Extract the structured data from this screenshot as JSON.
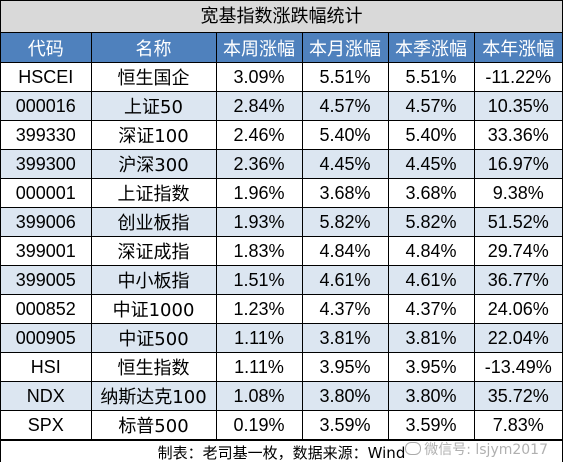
{
  "title": "宽基指数涨跌幅统计",
  "columns": [
    "代码",
    "名称",
    "本周涨幅",
    "本月涨幅",
    "本季涨幅",
    "本年涨幅"
  ],
  "colors": {
    "header_bg": "#4f81bd",
    "band_bg": "#dce6f1",
    "title_bg": "#d9d9d9",
    "up": "#e0191a",
    "down": "#139a3a"
  },
  "rows": [
    {
      "code": "HSCEI",
      "name": "恒生国企",
      "week": "3.09%",
      "month": "5.51%",
      "quarter": "5.51%",
      "year": "-11.22%"
    },
    {
      "code": "000016",
      "name": "上证50",
      "week": "2.84%",
      "month": "4.57%",
      "quarter": "4.57%",
      "year": "10.35%"
    },
    {
      "code": "399330",
      "name": "深证100",
      "week": "2.46%",
      "month": "5.40%",
      "quarter": "5.40%",
      "year": "33.36%"
    },
    {
      "code": "399300",
      "name": "沪深300",
      "week": "2.36%",
      "month": "4.45%",
      "quarter": "4.45%",
      "year": "16.97%"
    },
    {
      "code": "000001",
      "name": "上证指数",
      "week": "1.96%",
      "month": "3.68%",
      "quarter": "3.68%",
      "year": "9.38%"
    },
    {
      "code": "399006",
      "name": "创业板指",
      "week": "1.93%",
      "month": "5.82%",
      "quarter": "5.82%",
      "year": "51.52%"
    },
    {
      "code": "399001",
      "name": "深证成指",
      "week": "1.83%",
      "month": "4.84%",
      "quarter": "4.84%",
      "year": "29.74%"
    },
    {
      "code": "399005",
      "name": "中小板指",
      "week": "1.51%",
      "month": "4.61%",
      "quarter": "4.61%",
      "year": "36.77%"
    },
    {
      "code": "000852",
      "name": "中证1000",
      "week": "1.23%",
      "month": "4.37%",
      "quarter": "4.37%",
      "year": "24.06%"
    },
    {
      "code": "000905",
      "name": "中证500",
      "week": "1.11%",
      "month": "3.81%",
      "quarter": "3.81%",
      "year": "22.04%"
    },
    {
      "code": "HSI",
      "name": "恒生指数",
      "week": "1.11%",
      "month": "3.95%",
      "quarter": "3.95%",
      "year": "-13.49%"
    },
    {
      "code": "NDX",
      "name": "纳斯达克100",
      "week": "1.08%",
      "month": "3.80%",
      "quarter": "3.80%",
      "year": "35.72%"
    },
    {
      "code": "SPX",
      "name": "标普500",
      "week": "0.19%",
      "month": "3.59%",
      "quarter": "3.59%",
      "year": "7.83%"
    }
  ],
  "footer": "制表：老司基一枚，数据来源：Wind",
  "watermark": {
    "icon": "wechat-icon",
    "text": "微信号: lsjym2017"
  }
}
